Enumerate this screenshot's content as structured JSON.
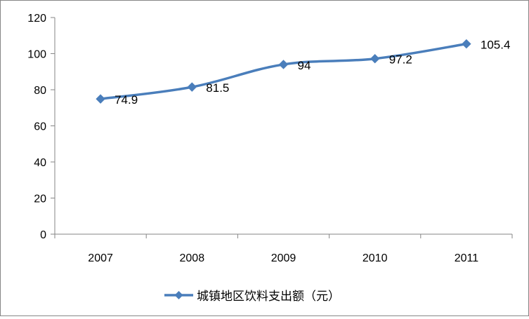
{
  "chart_data": {
    "type": "line",
    "categories": [
      "2007",
      "2008",
      "2009",
      "2010",
      "2011"
    ],
    "series": [
      {
        "name": "城镇地区饮料支出额（元）",
        "values": [
          74.9,
          81.5,
          94,
          97.2,
          105.4
        ],
        "labels": [
          "74.9",
          "81.5",
          "94",
          "97.2",
          "105.4"
        ]
      }
    ],
    "ylim": [
      0,
      120
    ],
    "yticks": [
      "0",
      "20",
      "40",
      "60",
      "80",
      "100",
      "120"
    ],
    "grid": false,
    "legend": "bottom",
    "colors": {
      "series": "#4a7ebb",
      "axis": "#868686"
    },
    "marker": "diamond"
  }
}
